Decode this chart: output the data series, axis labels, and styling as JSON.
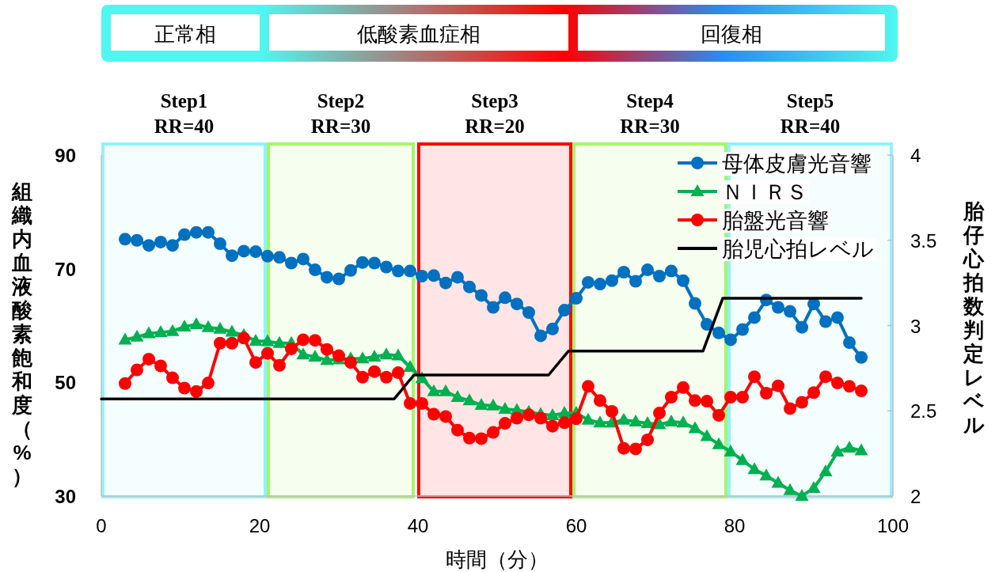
{
  "chart_data": {
    "type": "line",
    "xlabel": "時間（分）",
    "ylabel": "組織内血液酸素飽和度（%）",
    "y2label": "胎仔心拍数判定レベル",
    "annotations": [
      "正常相",
      "低酸素血症相",
      "回復相"
    ],
    "x": [
      3,
      4.5,
      6,
      7.5,
      9,
      10.5,
      12,
      13.5,
      15,
      16.5,
      18,
      19.5,
      21,
      22.5,
      24,
      25.5,
      27,
      28.5,
      30,
      31.5,
      33,
      34.5,
      36,
      37.5,
      39,
      40.5,
      42,
      43.5,
      45,
      46.5,
      48,
      49.5,
      51,
      52.5,
      54,
      55.5,
      57,
      58.5,
      60,
      61.5,
      63,
      64.5,
      66,
      67.5,
      69,
      70.5,
      72,
      73.5,
      75,
      76.5,
      78,
      79.5,
      81,
      82.5,
      84,
      85.5,
      87,
      88.5,
      90,
      91.5,
      93,
      94.5,
      96
    ],
    "series": [
      {
        "name": "母体皮膚光音響",
        "color": "#0070c0",
        "marker": "circle",
        "values": [
          75.2,
          75.0,
          74.1,
          74.7,
          74.1,
          76.0,
          76.4,
          76.4,
          74.4,
          72.3,
          73.1,
          73.0,
          72.2,
          72.0,
          71.0,
          71.7,
          69.8,
          68.5,
          68.2,
          69.7,
          71.1,
          71.0,
          70.3,
          69.6,
          69.6,
          68.7,
          68.8,
          67.5,
          68.5,
          66.8,
          65.3,
          63.2,
          64.9,
          63.8,
          62.3,
          58.2,
          59.4,
          62.7,
          64.8,
          67.6,
          67.3,
          67.9,
          69.4,
          67.8,
          69.8,
          68.7,
          69.6,
          67.9,
          63.9,
          60.2,
          58.7,
          57.5,
          59.3,
          61.4,
          64.5,
          63.2,
          62.5,
          59.7,
          63.8,
          60.7,
          61.4,
          57.0,
          54.4
        ]
      },
      {
        "name": "ＮＩＲＳ",
        "color": "#00b050",
        "marker": "triangle",
        "values": [
          57.5,
          58.0,
          58.6,
          58.8,
          59.0,
          59.8,
          60.2,
          59.7,
          59.4,
          58.9,
          58.3,
          57.3,
          57.2,
          56.9,
          56.9,
          54.9,
          54.5,
          53.9,
          54.0,
          54.2,
          54.2,
          54.5,
          54.9,
          54.7,
          52.7,
          50.7,
          48.4,
          48.4,
          47.4,
          46.8,
          46.0,
          45.9,
          45.3,
          45.1,
          44.8,
          44.4,
          44.2,
          44.6,
          44.6,
          43.4,
          42.9,
          42.9,
          43.4,
          43.1,
          42.8,
          42.6,
          43.1,
          42.9,
          41.9,
          40.5,
          39.1,
          37.8,
          36.3,
          34.7,
          33.6,
          32.3,
          31.0,
          30,
          31.4,
          34.3,
          37.8,
          38.5,
          38.0
        ]
      },
      {
        "name": "胎盤光音響",
        "color": "#ff0000",
        "marker": "circle",
        "values": [
          49.8,
          52.2,
          54.1,
          52.9,
          50.8,
          49.0,
          48.4,
          49.9,
          56.9,
          56.9,
          57.8,
          53.5,
          55.1,
          53.0,
          55.9,
          57.5,
          57.4,
          55.8,
          54.7,
          53.5,
          50.9,
          51.9,
          50.9,
          51.7,
          46.3,
          46.3,
          44.4,
          44.0,
          41.6,
          40.2,
          40.1,
          41.2,
          42.8,
          43.7,
          44.3,
          43.7,
          42.3,
          42.9,
          43.6,
          49.3,
          46.8,
          44.9,
          38.4,
          38.3,
          39.9,
          44.6,
          47.4,
          49.1,
          46.8,
          46.7,
          44.2,
          47.4,
          47.4,
          51.0,
          48.1,
          49.4,
          45.4,
          46.5,
          48.2,
          51.0,
          49.9,
          49.3,
          48.5
        ]
      },
      {
        "name": "胎児心拍レベル",
        "color": "#000000",
        "marker": "none",
        "axis": "y2",
        "x": [
          0,
          37,
          39.5,
          56.5,
          59,
          76,
          78.5,
          96
        ],
        "values": [
          2.57,
          2.57,
          2.71,
          2.71,
          2.85,
          2.85,
          3.16,
          3.16
        ]
      }
    ],
    "bands": [
      {
        "axis": "x",
        "from": 0,
        "to": 20.9,
        "label": "Step1\nRR=40",
        "color": "#8ff3ff"
      },
      {
        "axis": "x",
        "from": 20.9,
        "to": 39.6,
        "label": "Step2\nRR=30",
        "color": "#a6f56a"
      },
      {
        "axis": "x",
        "from": 39.9,
        "to": 59.5,
        "label": "Step3\nRR=20",
        "color": "#ff0000"
      },
      {
        "axis": "x",
        "from": 59.5,
        "to": 79.1,
        "label": "Step4\nRR=30",
        "color": "#a6f56a"
      },
      {
        "axis": "x",
        "from": 79.1,
        "to": 100,
        "label": "Step5\nRR=40",
        "color": "#8ff3ff"
      }
    ],
    "xlim": [
      0,
      100
    ],
    "xticks": [
      0,
      20,
      40,
      60,
      80,
      100
    ],
    "ylim": [
      30,
      90
    ],
    "yticks": [
      30,
      50,
      70,
      90
    ],
    "y2lim": [
      2,
      4
    ],
    "y2ticks": [
      2,
      2.5,
      3,
      3.5,
      4
    ],
    "legend": "top right",
    "grid": false
  }
}
